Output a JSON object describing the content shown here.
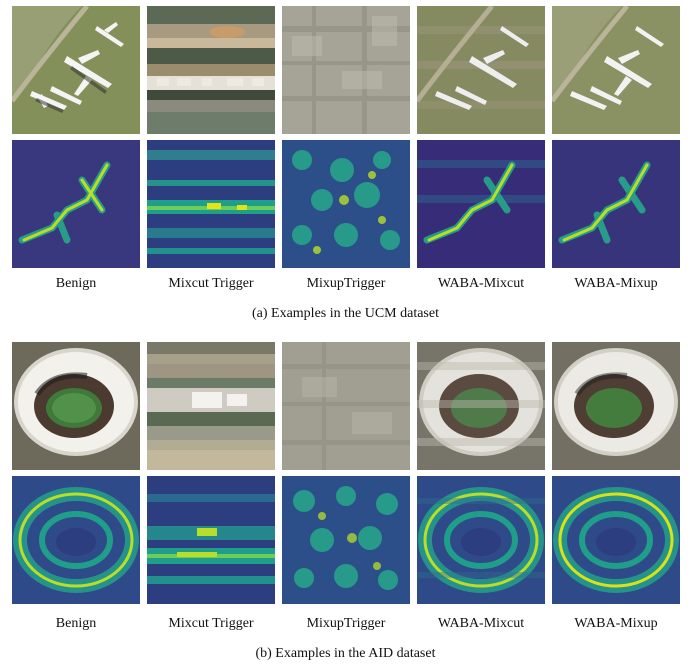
{
  "figure_a": {
    "labels": [
      "Benign",
      "Mixcut Trigger",
      "MixupTrigger",
      "WABA-Mixcut",
      "WABA-Mixup"
    ],
    "caption": "(a) Examples in the UCM dataset"
  },
  "figure_b": {
    "labels": [
      "Benign",
      "Mixcut Trigger",
      "MixupTrigger",
      "WABA-Mixcut",
      "WABA-Mixup"
    ],
    "caption": "(b) Examples in the AID dataset"
  },
  "colors": {
    "heatmap_low": "#3b1f73",
    "heatmap_mid": "#1f9e89",
    "heatmap_high": "#e3e418",
    "grass": "#7f8a55"
  }
}
